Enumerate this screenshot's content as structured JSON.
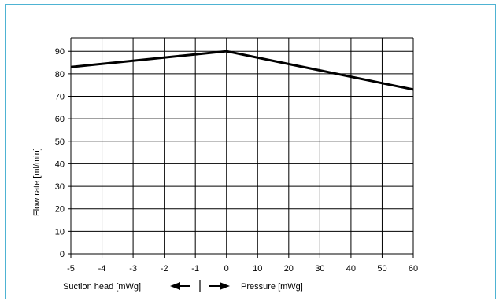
{
  "chart_data": {
    "type": "line",
    "title": "",
    "ylabel": "Flow rate [ml/min]",
    "x_left_label": "Suction head [mWg]",
    "x_right_label": "Pressure [mWg]",
    "x_tick_labels": [
      "-5",
      "-4",
      "-3",
      "-2",
      "-1",
      "0",
      "10",
      "20",
      "30",
      "40",
      "50",
      "60"
    ],
    "y_ticks": [
      0,
      10,
      20,
      30,
      40,
      50,
      60,
      70,
      80,
      90
    ],
    "ylim": [
      0,
      96
    ],
    "grid": true,
    "series": [
      {
        "x": [
          "-5",
          "0",
          "60"
        ],
        "values": [
          83,
          90,
          73
        ]
      }
    ],
    "colors": {
      "line": "#000000",
      "grid": "#000000",
      "frame": "#4eb3d3"
    }
  }
}
